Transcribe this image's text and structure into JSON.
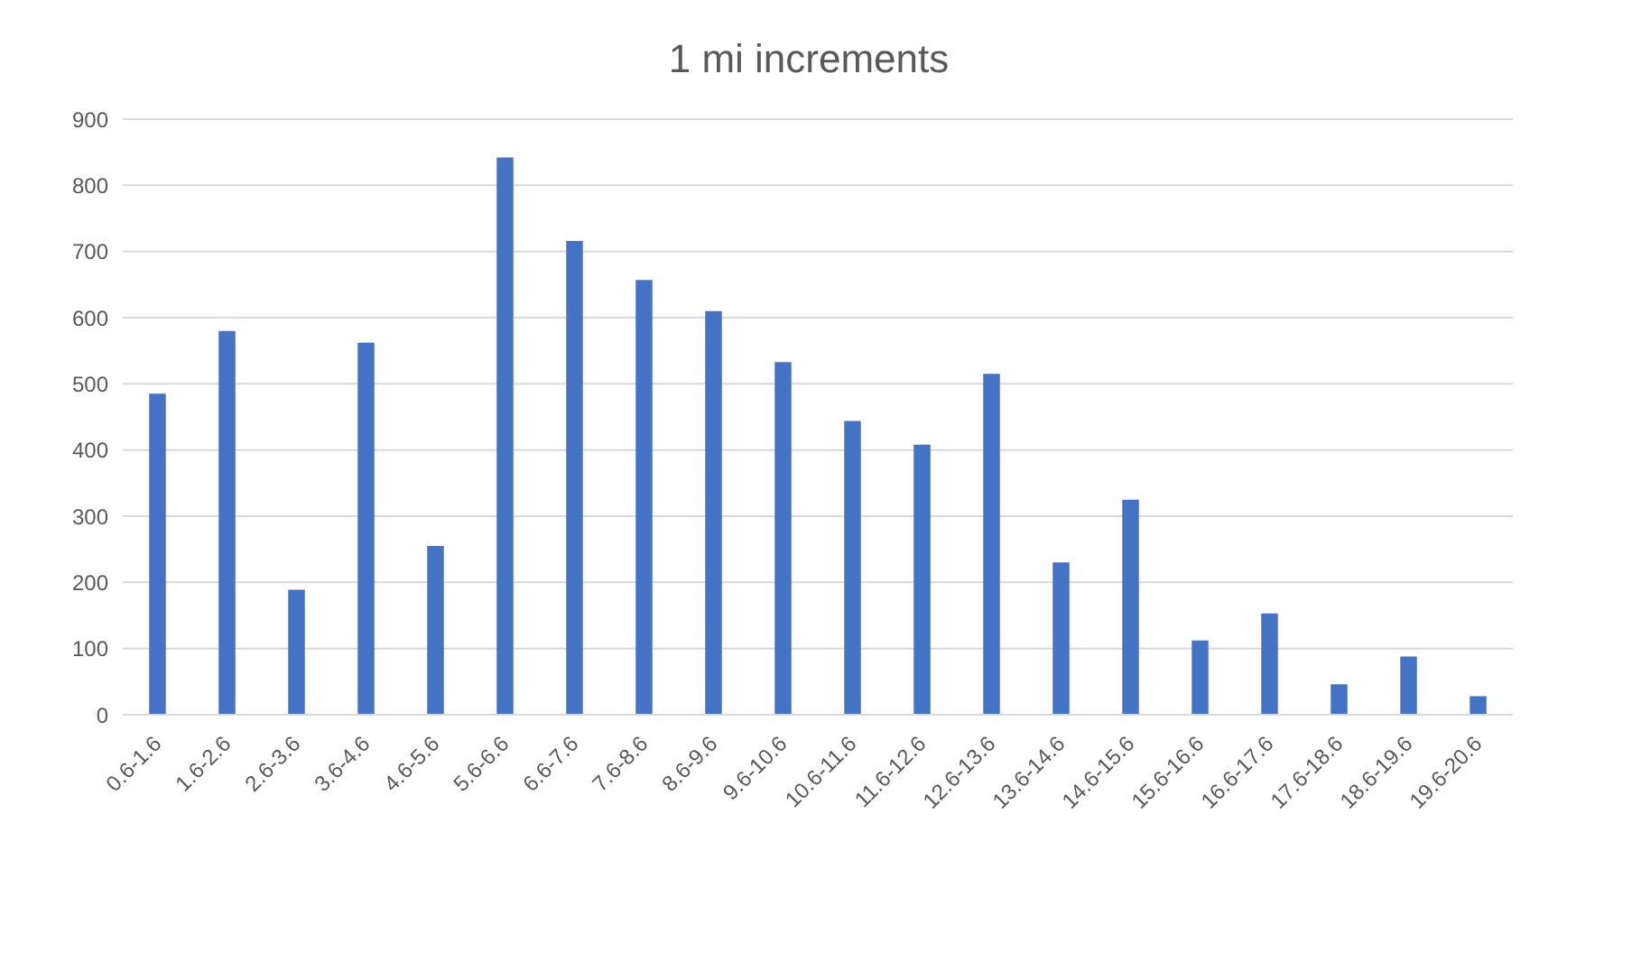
{
  "chart_data": {
    "type": "bar",
    "title": "1 mi increments",
    "categories": [
      "0.6-1.6",
      "1.6-2.6",
      "2.6-3.6",
      "3.6-4.6",
      "4.6-5.6",
      "5.6-6.6",
      "6.6-7.6",
      "7.6-8.6",
      "8.6-9.6",
      "9.6-10.6",
      "10.6-11.6",
      "11.6-12.6",
      "12.6-13.6",
      "13.6-14.6",
      "14.6-15.6",
      "15.6-16.6",
      "16.6-17.6",
      "17.6-18.6",
      "18.6-19.6",
      "19.6-20.6"
    ],
    "values": [
      485,
      580,
      189,
      562,
      255,
      842,
      716,
      657,
      610,
      533,
      444,
      408,
      515,
      230,
      325,
      112,
      153,
      46,
      88,
      28
    ],
    "color": "#4472c4",
    "ylim": [
      0,
      900
    ],
    "yticks": [
      0,
      100,
      200,
      300,
      400,
      500,
      600,
      700,
      800,
      900
    ],
    "grid": "y"
  }
}
